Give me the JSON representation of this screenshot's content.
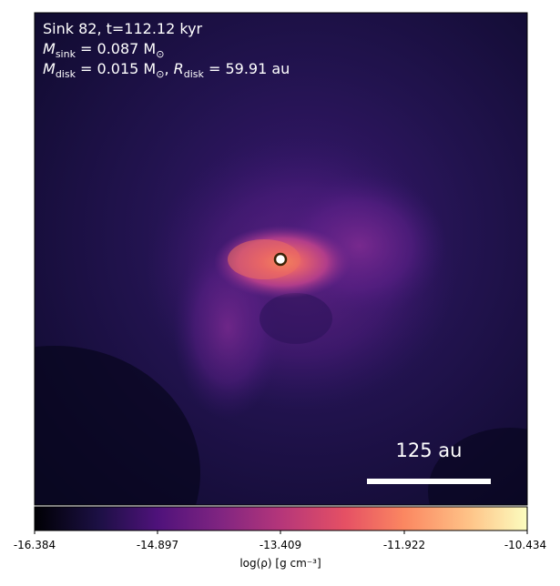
{
  "annotation": {
    "sink_line": "Sink 82, t=112.12 kyr",
    "msink_symbol": "M",
    "msink_sub": "sink",
    "msink_value": " = 0.087 M",
    "msun_sub": "⊙",
    "mdisk_symbol": "M",
    "mdisk_sub": "disk",
    "mdisk_value": " = 0.015 M",
    "mdisk_msun_sub": "⊙",
    "rdisk_sep": ", ",
    "rdisk_symbol": "R",
    "rdisk_sub": "disk",
    "rdisk_value": " = 59.91 au"
  },
  "scale_bar": {
    "label": "125 au"
  },
  "colorbar": {
    "ticks": [
      "-16.384",
      "-14.897",
      "-13.409",
      "-11.922",
      "-10.434"
    ],
    "label": "log(ρ) [g cm⁻³]",
    "colormap": "magma"
  },
  "colors": {
    "background_dark": "#150f3a",
    "mid": "#5b1e86",
    "inner": "#c2418a",
    "core": "#f3815c",
    "sink_marker": "#3a2205"
  }
}
